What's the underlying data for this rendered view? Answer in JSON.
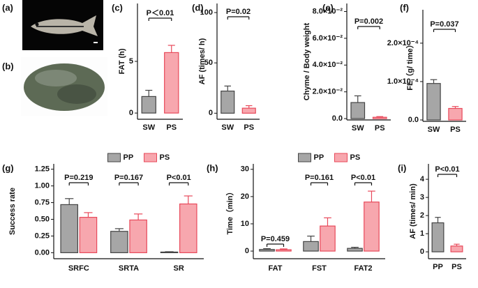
{
  "panel_labels": [
    "(a)",
    "(b)",
    "(c)",
    "(d)",
    "(e)",
    "(f)",
    "(g)",
    "(h)",
    "(i)"
  ],
  "chart_data": [
    {
      "type": "bar",
      "ylabel": "FAT (h)",
      "categories": [
        "SW",
        "PS"
      ],
      "values": [
        1.6,
        5.85
      ],
      "errors": [
        0.6,
        0.7
      ],
      "colors": [
        "#a6a6a6",
        "#f7a7ae"
      ],
      "edge_colors": [
        "#444444",
        "#e8495a"
      ],
      "ylim": [
        -0.6,
        10.6
      ],
      "yticks": [
        0,
        5
      ],
      "annotation": "P＜0.01"
    },
    {
      "type": "bar",
      "ylabel": "AF (times/ h)",
      "categories": [
        "SW",
        "PS"
      ],
      "values": [
        22,
        5
      ],
      "errors": [
        5,
        2.5
      ],
      "colors": [
        "#a6a6a6",
        "#f7a7ae"
      ],
      "edge_colors": [
        "#444444",
        "#e8495a"
      ],
      "ylim": [
        -6,
        109
      ],
      "yticks": [
        0,
        50,
        100
      ],
      "annotation": "P=0.02"
    },
    {
      "type": "bar",
      "ylabel": "Chyme / Body weight",
      "categories": [
        "SW",
        "PS"
      ],
      "values": [
        0.012,
        0.001
      ],
      "errors": [
        0.005,
        0.0005
      ],
      "colors": [
        "#a6a6a6",
        "#f7a7ae"
      ],
      "edge_colors": [
        "#444444",
        "#e8495a"
      ],
      "ylim": [
        -0.001,
        0.086
      ],
      "yticks": [
        {
          "value": 0,
          "label": "0.0"
        },
        {
          "value": 0.02,
          "label": "2.0×10⁻²"
        },
        {
          "value": 0.04,
          "label": "4.0×10⁻²"
        },
        {
          "value": 0.06,
          "label": "6.0×10⁻²"
        },
        {
          "value": 0.08,
          "label": "8.0×10⁻²"
        }
      ],
      "annotation": "P=0.002"
    },
    {
      "type": "bar",
      "ylabel": "FE（g/ time）",
      "categories": [
        "SW",
        "PS"
      ],
      "values": [
        9.5e-05,
        3e-05
      ],
      "errors": [
        1e-05,
        5e-06
      ],
      "colors": [
        "#a6a6a6",
        "#f7a7ae"
      ],
      "edge_colors": [
        "#444444",
        "#e8495a"
      ],
      "ylim": [
        -3.6e-06,
        0.000287
      ],
      "yticks": [
        {
          "value": 0,
          "label": "0.0"
        },
        {
          "value": 0.0001,
          "label": "1.0×10⁻⁴"
        },
        {
          "value": 0.0002,
          "label": "2.0×10⁻⁴"
        }
      ],
      "annotation": "P=0.037"
    },
    {
      "type": "grouped_bar",
      "ylabel": "Success rate",
      "categories": [
        "SRFC",
        "SRTA",
        "SR"
      ],
      "series": [
        {
          "name": "PP",
          "color": "#a6a6a6",
          "edge_color": "#444444",
          "values": [
            0.72,
            0.32,
            0.01
          ],
          "errors": [
            0.09,
            0.04,
            0.005
          ]
        },
        {
          "name": "PS",
          "color": "#f7a7ae",
          "edge_color": "#e8495a",
          "values": [
            0.53,
            0.49,
            0.73
          ],
          "errors": [
            0.07,
            0.09,
            0.12
          ]
        }
      ],
      "ylim": [
        -0.09,
        1.33
      ],
      "yticks": [
        {
          "value": 0,
          "label": "0.00"
        },
        {
          "value": 0.25,
          "label": "0.25"
        },
        {
          "value": 0.5,
          "label": "0.50"
        },
        {
          "value": 0.75,
          "label": "0.75"
        },
        {
          "value": 1,
          "label": "1.00"
        },
        {
          "value": 1.25,
          "label": "1.25"
        }
      ],
      "annotations": [
        "P=0.219",
        "P=0.167",
        "P<0.01"
      ],
      "legend": "top"
    },
    {
      "type": "grouped_bar",
      "ylabel": "Time（min）",
      "categories": [
        "FAT",
        "FST",
        "FAT2"
      ],
      "series": [
        {
          "name": "PP",
          "color": "#a6a6a6",
          "edge_color": "#444444",
          "values": [
            0.6,
            3.5,
            1
          ],
          "errors": [
            0.3,
            2,
            0.4
          ]
        },
        {
          "name": "PS",
          "color": "#f7a7ae",
          "edge_color": "#e8495a",
          "values": [
            0.5,
            9.2,
            18
          ],
          "errors": [
            0.3,
            3,
            4
          ]
        }
      ],
      "ylim": [
        -2.8,
        32
      ],
      "yticks": [
        0,
        10,
        20,
        30
      ],
      "annotations": [
        "P=0.459",
        "P=0.161",
        "P<0.01"
      ],
      "legend": "top"
    },
    {
      "type": "bar",
      "ylabel": "AF (times/ min)",
      "categories": [
        "PP",
        "PS"
      ],
      "values": [
        1.6,
        0.32
      ],
      "errors": [
        0.3,
        0.1
      ],
      "colors": [
        "#a6a6a6",
        "#f7a7ae"
      ],
      "edge_colors": [
        "#444444",
        "#e8495a"
      ],
      "ylim": [
        -0.38,
        4.85
      ],
      "yticks": [
        0,
        1,
        2,
        3,
        4
      ],
      "annotation": "P<0.01"
    }
  ]
}
